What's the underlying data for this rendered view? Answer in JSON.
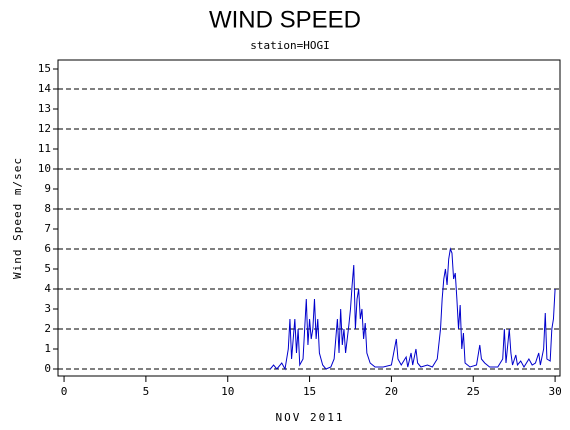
{
  "chart_data": {
    "type": "line",
    "title": "WIND SPEED",
    "subtitle": "station=HOGI",
    "x_label": "NOV 2011",
    "y_label": "Wind Speed m/sec",
    "xlim": [
      -0.37,
      30.3
    ],
    "xticks": [
      0,
      5,
      10,
      15,
      20,
      25,
      30
    ],
    "ylim": [
      -0.35,
      15.45
    ],
    "yticks": [
      0,
      1,
      2,
      3,
      4,
      5,
      6,
      7,
      8,
      9,
      10,
      11,
      12,
      13,
      14,
      15
    ],
    "ygrid": [
      0,
      2,
      4,
      6,
      8,
      10,
      12,
      14
    ],
    "series": [
      {
        "name": "Wind Speed",
        "color": "#0000cc",
        "x": [
          12.6,
          12.8,
          13.0,
          13.3,
          13.5,
          13.7,
          13.8,
          13.9,
          14.0,
          14.1,
          14.2,
          14.3,
          14.4,
          14.6,
          14.8,
          14.9,
          15.0,
          15.1,
          15.2,
          15.3,
          15.4,
          15.5,
          15.6,
          15.8,
          16.0,
          16.3,
          16.5,
          16.7,
          16.8,
          16.9,
          17.0,
          17.1,
          17.2,
          17.3,
          17.4,
          17.5,
          17.6,
          17.7,
          17.8,
          17.9,
          18.0,
          18.1,
          18.2,
          18.3,
          18.4,
          18.5,
          18.7,
          19.0,
          19.5,
          20.0,
          20.3,
          20.4,
          20.6,
          20.9,
          21.0,
          21.2,
          21.3,
          21.5,
          21.6,
          21.8,
          22.2,
          22.5,
          22.8,
          23.0,
          23.1,
          23.2,
          23.3,
          23.4,
          23.5,
          23.6,
          23.7,
          23.8,
          23.9,
          24.0,
          24.1,
          24.2,
          24.3,
          24.4,
          24.5,
          24.8,
          25.2,
          25.4,
          25.5,
          25.7,
          26.0,
          26.5,
          26.8,
          26.9,
          27.0,
          27.2,
          27.3,
          27.4,
          27.6,
          27.7,
          27.9,
          28.1,
          28.4,
          28.6,
          28.8,
          29.0,
          29.1,
          29.3,
          29.4,
          29.5,
          29.7,
          29.8,
          29.9,
          30.0
        ],
        "values": [
          0,
          0.2,
          0,
          0.3,
          0,
          1.0,
          2.5,
          0.5,
          1.5,
          2.5,
          0.8,
          2.0,
          0.2,
          0.5,
          3.5,
          1.2,
          2.5,
          1.5,
          2.0,
          3.5,
          1.5,
          2.5,
          0.8,
          0.2,
          0,
          0.1,
          0.5,
          2.5,
          0.8,
          3.0,
          1.2,
          2.0,
          0.8,
          1.5,
          2.2,
          3.0,
          4.2,
          5.2,
          2.0,
          3.5,
          4.0,
          2.5,
          3.0,
          1.5,
          2.3,
          0.8,
          0.3,
          0.1,
          0.1,
          0.2,
          1.5,
          0.5,
          0.2,
          0.6,
          0.1,
          0.8,
          0.2,
          1.0,
          0.3,
          0.1,
          0.2,
          0.1,
          0.5,
          2.0,
          3.5,
          4.5,
          5.0,
          4.2,
          5.5,
          6.0,
          5.8,
          4.5,
          4.8,
          3.5,
          2.0,
          3.2,
          1.0,
          1.8,
          0.3,
          0.1,
          0.2,
          1.2,
          0.5,
          0.3,
          0.1,
          0.1,
          0.5,
          2.0,
          0.3,
          2.0,
          0.8,
          0.2,
          0.7,
          0.2,
          0.4,
          0.1,
          0.5,
          0.2,
          0.3,
          0.8,
          0.2,
          1.0,
          2.8,
          0.5,
          0.4,
          2.0,
          2.5,
          4.0
        ]
      }
    ]
  }
}
